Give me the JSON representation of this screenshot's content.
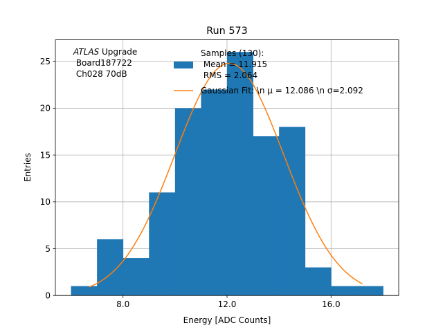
{
  "chart_data": {
    "type": "bar",
    "title": "Run 573",
    "xlabel": "Energy [ADC Counts]",
    "ylabel": "Entries",
    "xlim": [
      5.4,
      18.6
    ],
    "ylim": [
      0,
      27.3
    ],
    "xticks": [
      8.0,
      12.0,
      16.0
    ],
    "xtick_labels": [
      "8.0",
      "12.0",
      "16.0"
    ],
    "yticks": [
      0,
      5,
      10,
      15,
      20,
      25
    ],
    "ytick_labels": [
      "0",
      "5",
      "10",
      "15",
      "20",
      "25"
    ],
    "grid": true,
    "legend_position": "top-center",
    "bins": [
      6,
      7,
      8,
      9,
      10,
      11,
      12,
      13,
      14,
      15,
      16,
      17,
      18
    ],
    "series": [
      {
        "kind": "histogram",
        "values": [
          1,
          6,
          4,
          11,
          20,
          22,
          26,
          17,
          18,
          3,
          1,
          1
        ],
        "legend_lines": [
          "Samples (130):",
          " Mean = 11.915",
          " RMS = 2.064"
        ],
        "color": "#1f77b4"
      },
      {
        "kind": "gaussian-fit",
        "mu": 12.086,
        "sigma": 2.092,
        "amplitude": 24.8,
        "x_range": [
          6.7,
          17.2
        ],
        "legend_label": "Gaussian Fit: \\n μ = 12.086 \\n σ=2.092",
        "color": "#ff7f0e"
      }
    ],
    "annotation": {
      "italic": "ATLAS",
      "rest": " Upgrade",
      "line2": " Board187722",
      "line3": " Ch028 70dB"
    }
  }
}
